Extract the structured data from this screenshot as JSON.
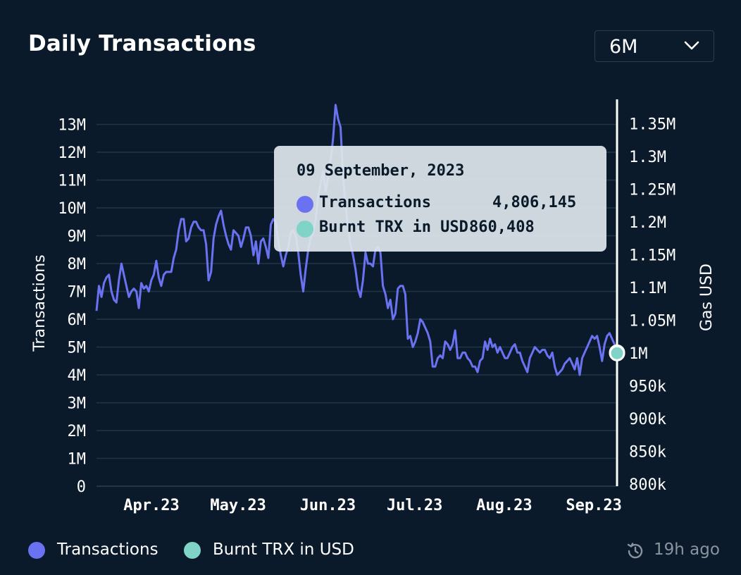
{
  "title": "Daily Transactions",
  "range_select": {
    "value": "6M",
    "icon": "chevron-down-icon"
  },
  "colors": {
    "transactions": "#6b72f2",
    "burnt": "#7fd3c7",
    "background": "#0a1a2a",
    "grid": "#1e3444"
  },
  "tooltip": {
    "date": "09 September, 2023",
    "rows": [
      {
        "label": "Transactions",
        "value": "4,806,145"
      },
      {
        "label": "Burnt TRX in USD",
        "value": "860,408"
      }
    ]
  },
  "legend": [
    {
      "label": "Transactions"
    },
    {
      "label": "Burnt TRX in USD"
    }
  ],
  "updated": {
    "text": "19h ago",
    "icon": "history-clock-icon"
  },
  "chart_data": {
    "type": "line",
    "x_start": "2023-03-13",
    "x_end": "2023-09-09",
    "x_ticks": [
      "Apr.23",
      "May.23",
      "Jun.23",
      "Jul.23",
      "Aug.23",
      "Sep.23"
    ],
    "y_left": {
      "label": "Transactions",
      "range": [
        0,
        13800000
      ],
      "ticks": [
        "0",
        "1M",
        "2M",
        "3M",
        "4M",
        "5M",
        "6M",
        "7M",
        "8M",
        "9M",
        "10M",
        "11M",
        "12M",
        "13M"
      ]
    },
    "y_right": {
      "label": "Gas USD",
      "range": [
        797000,
        1383000
      ],
      "ticks": [
        "800k",
        "850k",
        "900k",
        "950k",
        "1M",
        "1.05M",
        "1.1M",
        "1.15M",
        "1.2M",
        "1.25M",
        "1.3M",
        "1.35M"
      ]
    },
    "grid": true,
    "legend_position": "bottom-left",
    "series": [
      {
        "name": "Transactions",
        "axis": "left",
        "values": [
          6.3,
          7.2,
          6.8,
          7.3,
          7.5,
          7.6,
          7.0,
          6.7,
          6.6,
          7.4,
          8.0,
          7.6,
          7.2,
          6.8,
          7.0,
          7.1,
          7.0,
          6.4,
          7.3,
          7.1,
          7.2,
          7.0,
          7.4,
          7.6,
          8.1,
          7.5,
          7.2,
          7.6,
          7.7,
          7.7,
          7.7,
          8.2,
          8.5,
          9.2,
          9.6,
          9.6,
          8.8,
          8.9,
          9.3,
          9.5,
          9.5,
          9.3,
          9.2,
          9.2,
          8.7,
          7.4,
          7.7,
          8.9,
          9.4,
          9.7,
          9.9,
          9.4,
          9.0,
          8.7,
          8.5,
          9.2,
          9.1,
          9.0,
          8.6,
          8.9,
          9.3,
          9.3,
          9.0,
          8.3,
          8.8,
          8.0,
          8.8,
          8.9,
          8.6,
          8.2,
          9.4,
          9.6,
          9.5,
          8.8,
          8.3,
          7.9,
          8.3,
          8.6,
          9.1,
          9.2,
          9.0,
          8.4,
          7.6,
          7.0,
          7.8,
          8.5,
          8.9,
          9.1,
          9.6,
          10.4,
          10.9,
          11.3,
          10.6,
          11.1,
          11.7,
          12.5,
          13.7,
          13.2,
          12.9,
          11.1,
          10.1,
          9.3,
          8.7,
          8.3,
          7.8,
          7.1,
          6.8,
          7.4,
          8.4,
          8.0,
          8.0,
          7.9,
          8.5,
          8.6,
          8.4,
          7.2,
          6.9,
          6.4,
          6.7,
          6.0,
          6.2,
          7.1,
          7.2,
          7.2,
          6.9,
          5.3,
          5.4,
          5.0,
          5.2,
          5.5,
          6.0,
          5.9,
          5.7,
          5.5,
          5.2,
          4.3,
          4.3,
          4.6,
          4.7,
          4.6,
          5.2,
          5.1,
          4.9,
          5.1,
          5.6,
          4.6,
          4.6,
          4.8,
          4.8,
          4.6,
          4.5,
          4.3,
          4.3,
          4.1,
          4.5,
          4.6,
          5.2,
          4.9,
          5.3,
          5.0,
          5.1,
          4.8,
          5.0,
          4.8,
          4.6,
          4.6,
          4.8,
          5.0,
          5.1,
          4.8,
          4.8,
          4.5,
          4.3,
          4.1,
          4.6,
          4.8,
          5.0,
          4.9,
          4.8,
          4.9,
          4.9,
          4.7,
          4.6,
          4.8,
          4.3,
          4.0,
          4.1,
          4.2,
          4.4,
          4.5,
          4.6,
          4.4,
          4.2,
          4.6,
          4.0,
          4.6,
          4.8,
          5.0,
          5.2,
          5.4,
          5.3,
          5.4,
          5.0,
          4.5,
          5.1,
          5.4,
          5.5,
          5.3,
          5.1,
          4.806
        ]
      },
      {
        "name": "Burnt TRX in USD",
        "axis": "right",
        "values": [
          1000000.0
        ]
      }
    ]
  }
}
